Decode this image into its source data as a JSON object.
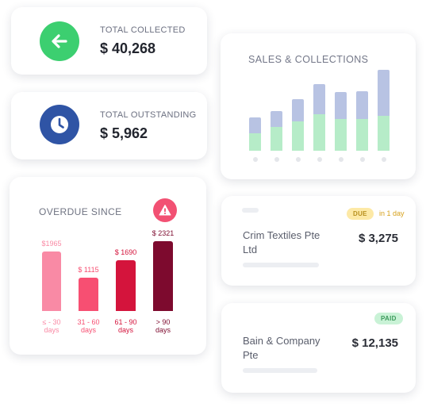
{
  "collected": {
    "label": "TOTAL COLLECTED",
    "value": "$ 40,268",
    "icon": "arrow-left-icon",
    "color": "#3ccf70"
  },
  "outstanding": {
    "label": "TOTAL OUTSTANDING",
    "value": "$ 5,962",
    "icon": "clock-icon",
    "color": "#2f54a5"
  },
  "overdue": {
    "title": "OVERDUE SINCE",
    "alert_icon": "warning-icon",
    "alert_color": "#f25173"
  },
  "sales": {
    "title": "SALES & COLLECTIONS"
  },
  "invoices": [
    {
      "name": "Crim Textiles Pte Ltd",
      "amount": "$ 3,275",
      "status": "DUE",
      "note": "in 1 day"
    },
    {
      "name": "Bain & Company Pte",
      "amount": "$ 12,135",
      "status": "PAID"
    }
  ],
  "chart_data": [
    {
      "type": "bar",
      "title": "OVERDUE SINCE",
      "categories": [
        "≤ - 30 days",
        "31 - 60 days",
        "61 - 90 days",
        "> 90 days"
      ],
      "values": [
        1965,
        1115,
        1690,
        2321
      ],
      "value_labels": [
        "$1965",
        "$ 1115",
        "$ 1690",
        "$ 2321"
      ],
      "colors": [
        "#f98aa5",
        "#f74f72",
        "#d4143c",
        "#7d0a2e"
      ],
      "ylim": [
        0,
        2500
      ]
    },
    {
      "type": "bar",
      "stacked": true,
      "title": "SALES & COLLECTIONS",
      "categories": [
        "",
        "",
        "",
        "",
        "",
        "",
        ""
      ],
      "series": [
        {
          "values": [
            22,
            30,
            37,
            46,
            40,
            40,
            44
          ],
          "color": "#b6ecc8"
        },
        {
          "values": [
            20,
            20,
            28,
            38,
            34,
            35,
            58
          ],
          "color": "#b8c3e3"
        }
      ],
      "ylim": [
        0,
        102
      ]
    }
  ]
}
